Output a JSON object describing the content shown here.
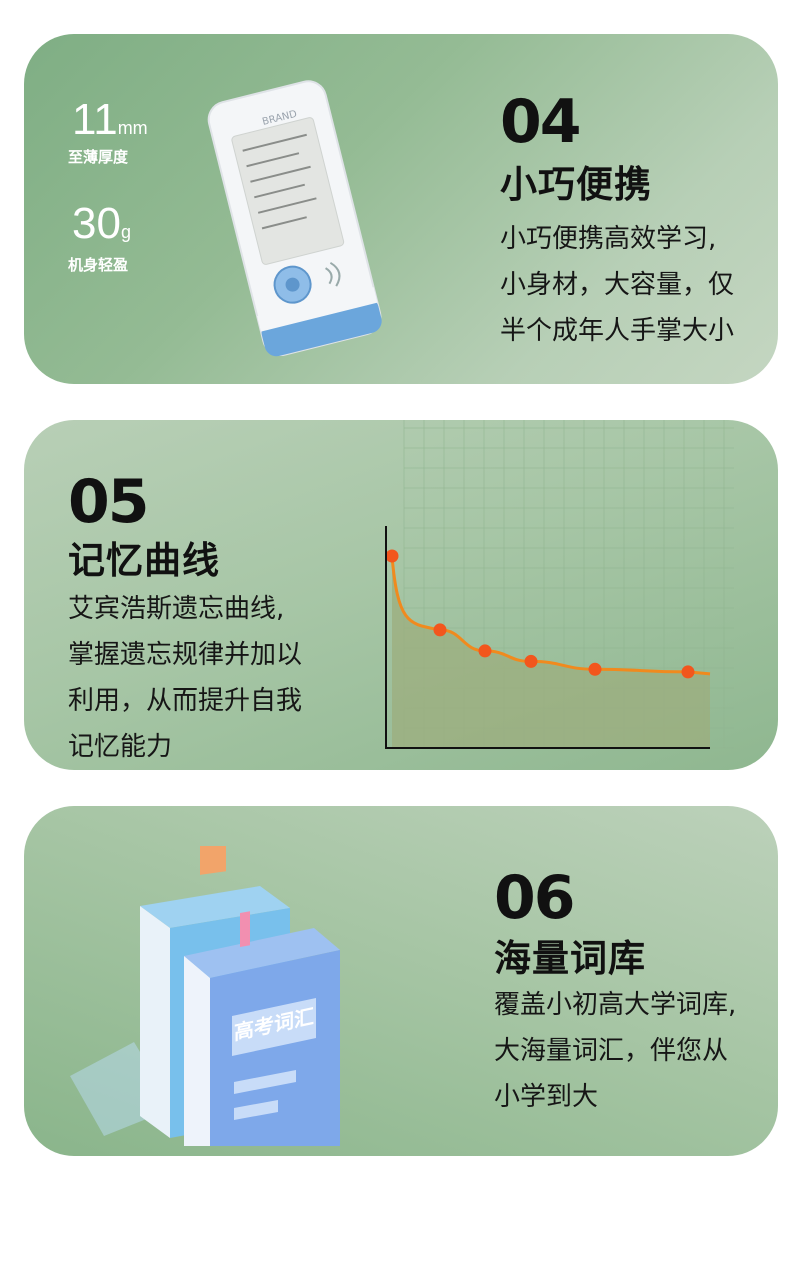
{
  "section1": {
    "num": "04",
    "title": "小巧便携",
    "desc": [
      "小巧便携高效学习,",
      "小身材，大容量，仅",
      "半个成年人手掌大小"
    ],
    "spec1_value": "11",
    "spec1_unit": "mm",
    "spec1_label": "至薄厚度",
    "spec2_value": "30",
    "spec2_unit": "g",
    "spec2_label": "机身轻盈",
    "device_brand": "BRAND"
  },
  "section2": {
    "num": "05",
    "title": "记忆曲线",
    "desc": [
      "艾宾浩斯遗忘曲线,",
      "掌握遗忘规律并加以",
      "利用，从而提升自我",
      "记忆能力"
    ]
  },
  "section3": {
    "num": "06",
    "title": "海量词库",
    "desc": [
      "覆盖小初高大学词库,",
      "大海量词汇，伴您从",
      "小学到大"
    ],
    "book_cover_text": "高考词汇"
  },
  "chart_data": {
    "type": "line",
    "title": "",
    "xlabel": "",
    "ylabel": "",
    "x": [
      0,
      1,
      2,
      3,
      4,
      5
    ],
    "series": [
      {
        "values": [
          100,
          45,
          37,
          33,
          30,
          29
        ]
      }
    ],
    "ylim": [
      0,
      110
    ],
    "grid": true,
    "colors": {
      "line": "#f08a1e",
      "point": "#f2561d",
      "area": "#9cae7e"
    }
  }
}
